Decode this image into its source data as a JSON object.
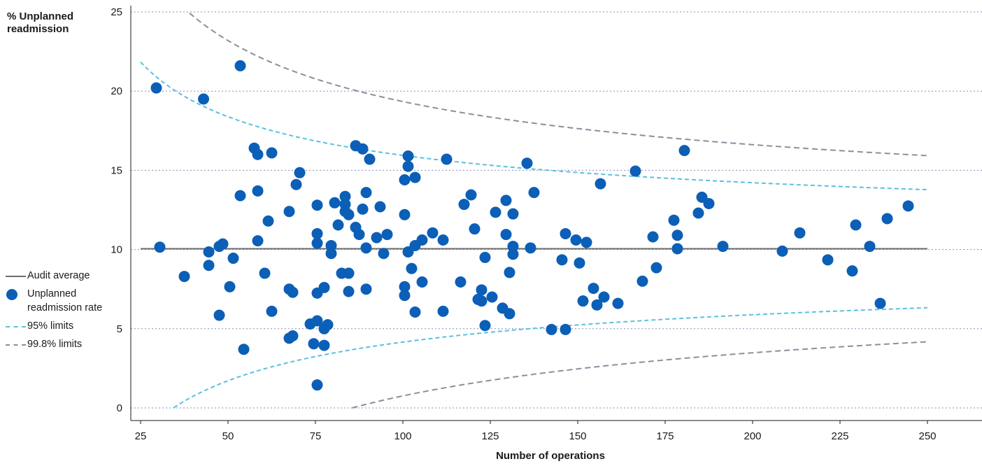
{
  "chart_data": {
    "type": "scatter",
    "ylabel": "% Unplanned readmission",
    "xlabel": "Number of operations",
    "xlim": [
      25,
      250
    ],
    "ylim": [
      0,
      25
    ],
    "xticks": [
      25,
      50,
      75,
      100,
      125,
      150,
      175,
      200,
      225,
      250
    ],
    "yticks": [
      0,
      5,
      10,
      15,
      20,
      25
    ],
    "grid": "horizontal dotted",
    "legend_position": "left",
    "colors": {
      "points": "#0b5fb7",
      "average": "#6d6d6d",
      "limit95": "#5bc0de",
      "limit998": "#8a8f9c",
      "grid": "#8a8fb0"
    },
    "audit_average": 10.05,
    "legend": [
      {
        "key": "average",
        "label": "Audit average"
      },
      {
        "key": "points",
        "label": "Unplanned readmission rate"
      },
      {
        "key": "limit95",
        "label": "95% limits"
      },
      {
        "key": "limit998",
        "label": "99.8% limits"
      }
    ],
    "series": [
      {
        "name": "Unplanned readmission rate",
        "points": [
          [
            29.5,
            20.2
          ],
          [
            30.5,
            10.15
          ],
          [
            37.5,
            8.3
          ],
          [
            43,
            19.5
          ],
          [
            44.5,
            9.85
          ],
          [
            44.5,
            9.0
          ],
          [
            47.5,
            5.85
          ],
          [
            47.5,
            10.2
          ],
          [
            48.5,
            10.35
          ],
          [
            50.5,
            7.65
          ],
          [
            51.5,
            9.45
          ],
          [
            53.5,
            21.6
          ],
          [
            53.5,
            13.4
          ],
          [
            54.5,
            3.7
          ],
          [
            57.5,
            16.4
          ],
          [
            58.5,
            16.0
          ],
          [
            58.5,
            13.7
          ],
          [
            58.5,
            10.55
          ],
          [
            60.5,
            8.5
          ],
          [
            61.5,
            11.8
          ],
          [
            62.5,
            16.1
          ],
          [
            62.5,
            6.1
          ],
          [
            67.5,
            12.4
          ],
          [
            67.5,
            7.5
          ],
          [
            67.5,
            4.4
          ],
          [
            68.5,
            4.55
          ],
          [
            68.5,
            7.3
          ],
          [
            69.5,
            14.1
          ],
          [
            70.5,
            14.85
          ],
          [
            73.5,
            5.3
          ],
          [
            74.5,
            4.05
          ],
          [
            75.5,
            12.8
          ],
          [
            75.5,
            11.0
          ],
          [
            75.5,
            10.4
          ],
          [
            75.5,
            7.25
          ],
          [
            75.5,
            5.5
          ],
          [
            75.5,
            1.45
          ],
          [
            77.5,
            5.0
          ],
          [
            77.5,
            7.6
          ],
          [
            77.5,
            3.95
          ],
          [
            78.5,
            5.25
          ],
          [
            79.5,
            10.25
          ],
          [
            79.5,
            9.75
          ],
          [
            80.5,
            12.95
          ],
          [
            81.5,
            11.55
          ],
          [
            82.5,
            8.5
          ],
          [
            83.5,
            13.35
          ],
          [
            83.5,
            12.85
          ],
          [
            83.5,
            12.4
          ],
          [
            84.5,
            12.2
          ],
          [
            84.5,
            8.5
          ],
          [
            84.5,
            7.35
          ],
          [
            86.5,
            16.55
          ],
          [
            86.5,
            11.4
          ],
          [
            87.5,
            10.95
          ],
          [
            88.5,
            16.35
          ],
          [
            88.5,
            12.55
          ],
          [
            89.5,
            13.6
          ],
          [
            89.5,
            10.1
          ],
          [
            89.5,
            7.5
          ],
          [
            90.5,
            15.7
          ],
          [
            92.5,
            10.75
          ],
          [
            93.5,
            12.7
          ],
          [
            94.5,
            9.75
          ],
          [
            95.5,
            10.95
          ],
          [
            100.5,
            14.4
          ],
          [
            100.5,
            12.2
          ],
          [
            100.5,
            7.65
          ],
          [
            100.5,
            7.1
          ],
          [
            101.5,
            15.9
          ],
          [
            101.5,
            15.25
          ],
          [
            101.5,
            9.85
          ],
          [
            102.5,
            8.8
          ],
          [
            103.5,
            14.55
          ],
          [
            103.5,
            10.25
          ],
          [
            103.5,
            6.05
          ],
          [
            105.5,
            10.6
          ],
          [
            105.5,
            7.95
          ],
          [
            108.5,
            11.05
          ],
          [
            111.5,
            10.6
          ],
          [
            111.5,
            6.1
          ],
          [
            112.5,
            15.7
          ],
          [
            116.5,
            7.95
          ],
          [
            117.5,
            12.85
          ],
          [
            119.5,
            13.45
          ],
          [
            120.5,
            11.3
          ],
          [
            121.5,
            6.85
          ],
          [
            122.5,
            6.75
          ],
          [
            122.5,
            7.45
          ],
          [
            123.5,
            9.5
          ],
          [
            123.5,
            5.2
          ],
          [
            125.5,
            7.0
          ],
          [
            126.5,
            12.35
          ],
          [
            128.5,
            6.3
          ],
          [
            129.5,
            10.95
          ],
          [
            129.5,
            13.1
          ],
          [
            130.5,
            5.95
          ],
          [
            130.5,
            8.55
          ],
          [
            131.5,
            12.25
          ],
          [
            131.5,
            10.2
          ],
          [
            131.5,
            9.7
          ],
          [
            135.5,
            15.45
          ],
          [
            136.5,
            10.1
          ],
          [
            137.5,
            13.6
          ],
          [
            142.5,
            4.95
          ],
          [
            145.5,
            9.35
          ],
          [
            146.5,
            11.0
          ],
          [
            146.5,
            4.95
          ],
          [
            149.5,
            10.6
          ],
          [
            150.5,
            9.15
          ],
          [
            151.5,
            6.75
          ],
          [
            152.5,
            10.45
          ],
          [
            154.5,
            7.55
          ],
          [
            155.5,
            6.5
          ],
          [
            156.5,
            14.15
          ],
          [
            157.5,
            7.0
          ],
          [
            161.5,
            6.6
          ],
          [
            166.5,
            14.95
          ],
          [
            168.5,
            8.0
          ],
          [
            171.5,
            10.8
          ],
          [
            172.5,
            8.85
          ],
          [
            177.5,
            11.85
          ],
          [
            178.5,
            10.9
          ],
          [
            178.5,
            10.05
          ],
          [
            180.5,
            16.25
          ],
          [
            184.5,
            12.3
          ],
          [
            185.5,
            13.3
          ],
          [
            187.5,
            12.9
          ],
          [
            191.5,
            10.2
          ],
          [
            208.5,
            9.9
          ],
          [
            213.5,
            11.05
          ],
          [
            221.5,
            9.35
          ],
          [
            228.5,
            8.65
          ],
          [
            229.5,
            11.55
          ],
          [
            233.5,
            10.2
          ],
          [
            236.5,
            6.6
          ],
          [
            238.5,
            11.95
          ],
          [
            244.5,
            12.75
          ]
        ]
      }
    ]
  }
}
